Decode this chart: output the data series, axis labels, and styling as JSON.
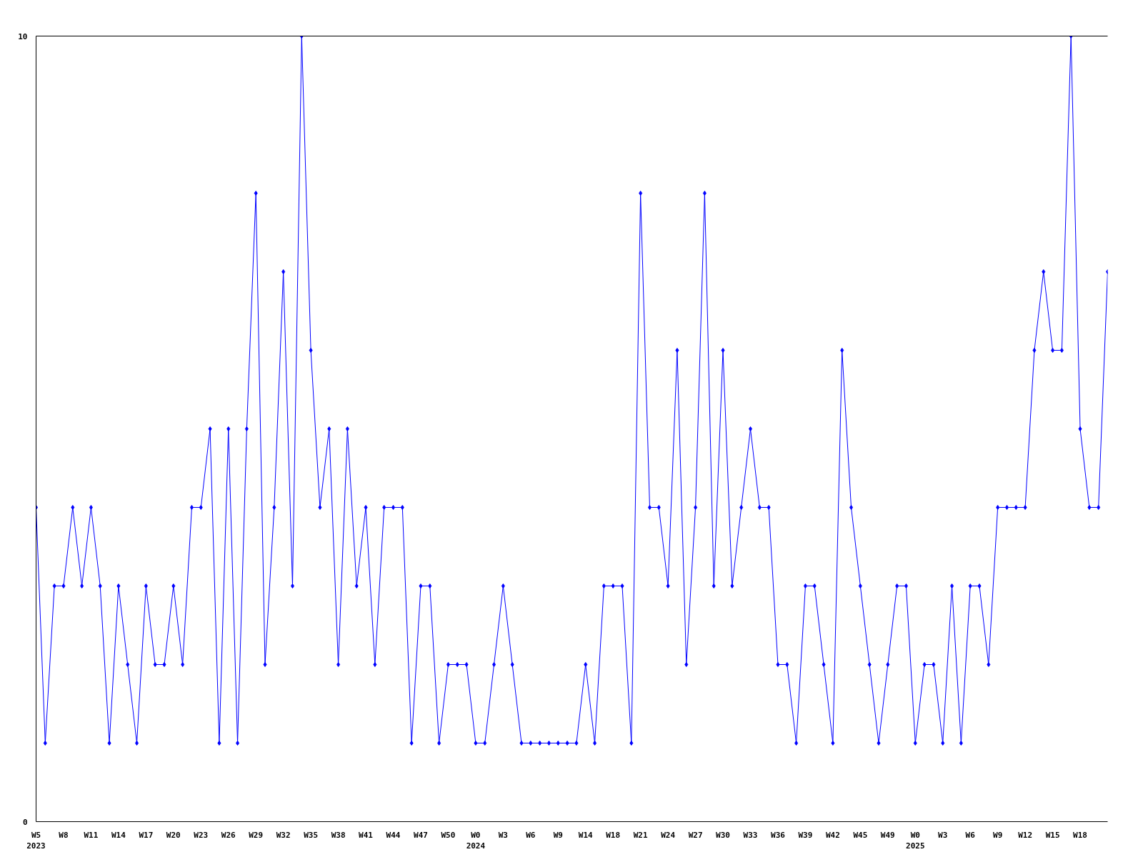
{
  "chart_data": {
    "type": "line",
    "categories": [
      "W5\n2023",
      null,
      null,
      "W8",
      null,
      null,
      "W11",
      null,
      null,
      "W14",
      null,
      null,
      "W17",
      null,
      null,
      "W20",
      null,
      null,
      "W23",
      null,
      null,
      "W26",
      null,
      null,
      "W29",
      null,
      null,
      "W32",
      null,
      null,
      "W35",
      null,
      null,
      "W38",
      null,
      null,
      "W41",
      null,
      null,
      "W44",
      null,
      null,
      "W47",
      null,
      null,
      "W50",
      null,
      null,
      "W0\n2024",
      null,
      null,
      "W3",
      null,
      null,
      "W6",
      null,
      null,
      "W9",
      null,
      null,
      "W14",
      null,
      null,
      "W18",
      null,
      null,
      "W21",
      null,
      null,
      "W24",
      null,
      null,
      "W27",
      null,
      null,
      "W30",
      null,
      null,
      "W33",
      null,
      null,
      "W36",
      null,
      null,
      "W39",
      null,
      null,
      "W42",
      null,
      null,
      "W45",
      null,
      null,
      "W49",
      null,
      null,
      "W0\n2025",
      null,
      null,
      "W3",
      null,
      null,
      "W6",
      null,
      null,
      "W9",
      null,
      null,
      "W12",
      null,
      null,
      "W15",
      null,
      null,
      "W18",
      null,
      null,
      null
    ],
    "series": [
      {
        "color": "#0000ff",
        "values": [
          4,
          1,
          3,
          3,
          4,
          3,
          4,
          3,
          1,
          3,
          2,
          1,
          3,
          2,
          2,
          3,
          2,
          4,
          4,
          5,
          1,
          5,
          1,
          5,
          8,
          2,
          4,
          7,
          3,
          10,
          6,
          4,
          5,
          2,
          5,
          3,
          4,
          2,
          4,
          4,
          4,
          1,
          3,
          3,
          1,
          2,
          2,
          2,
          1,
          1,
          2,
          3,
          2,
          1,
          1,
          1,
          1,
          1,
          1,
          1,
          2,
          1,
          3,
          3,
          3,
          1,
          8,
          4,
          4,
          3,
          6,
          2,
          4,
          8,
          3,
          6,
          3,
          4,
          5,
          4,
          4,
          2,
          2,
          1,
          3,
          3,
          2,
          1,
          6,
          4,
          3,
          2,
          1,
          2,
          3,
          3,
          1,
          2,
          2,
          1,
          3,
          1,
          3,
          3,
          2,
          4,
          4,
          4,
          4,
          6,
          7,
          6,
          6,
          10,
          5,
          4,
          4,
          7
        ]
      }
    ],
    "ylim": [
      0,
      10
    ],
    "yticks": [
      0,
      10
    ],
    "marker": "diamond",
    "line_style": "solid"
  }
}
